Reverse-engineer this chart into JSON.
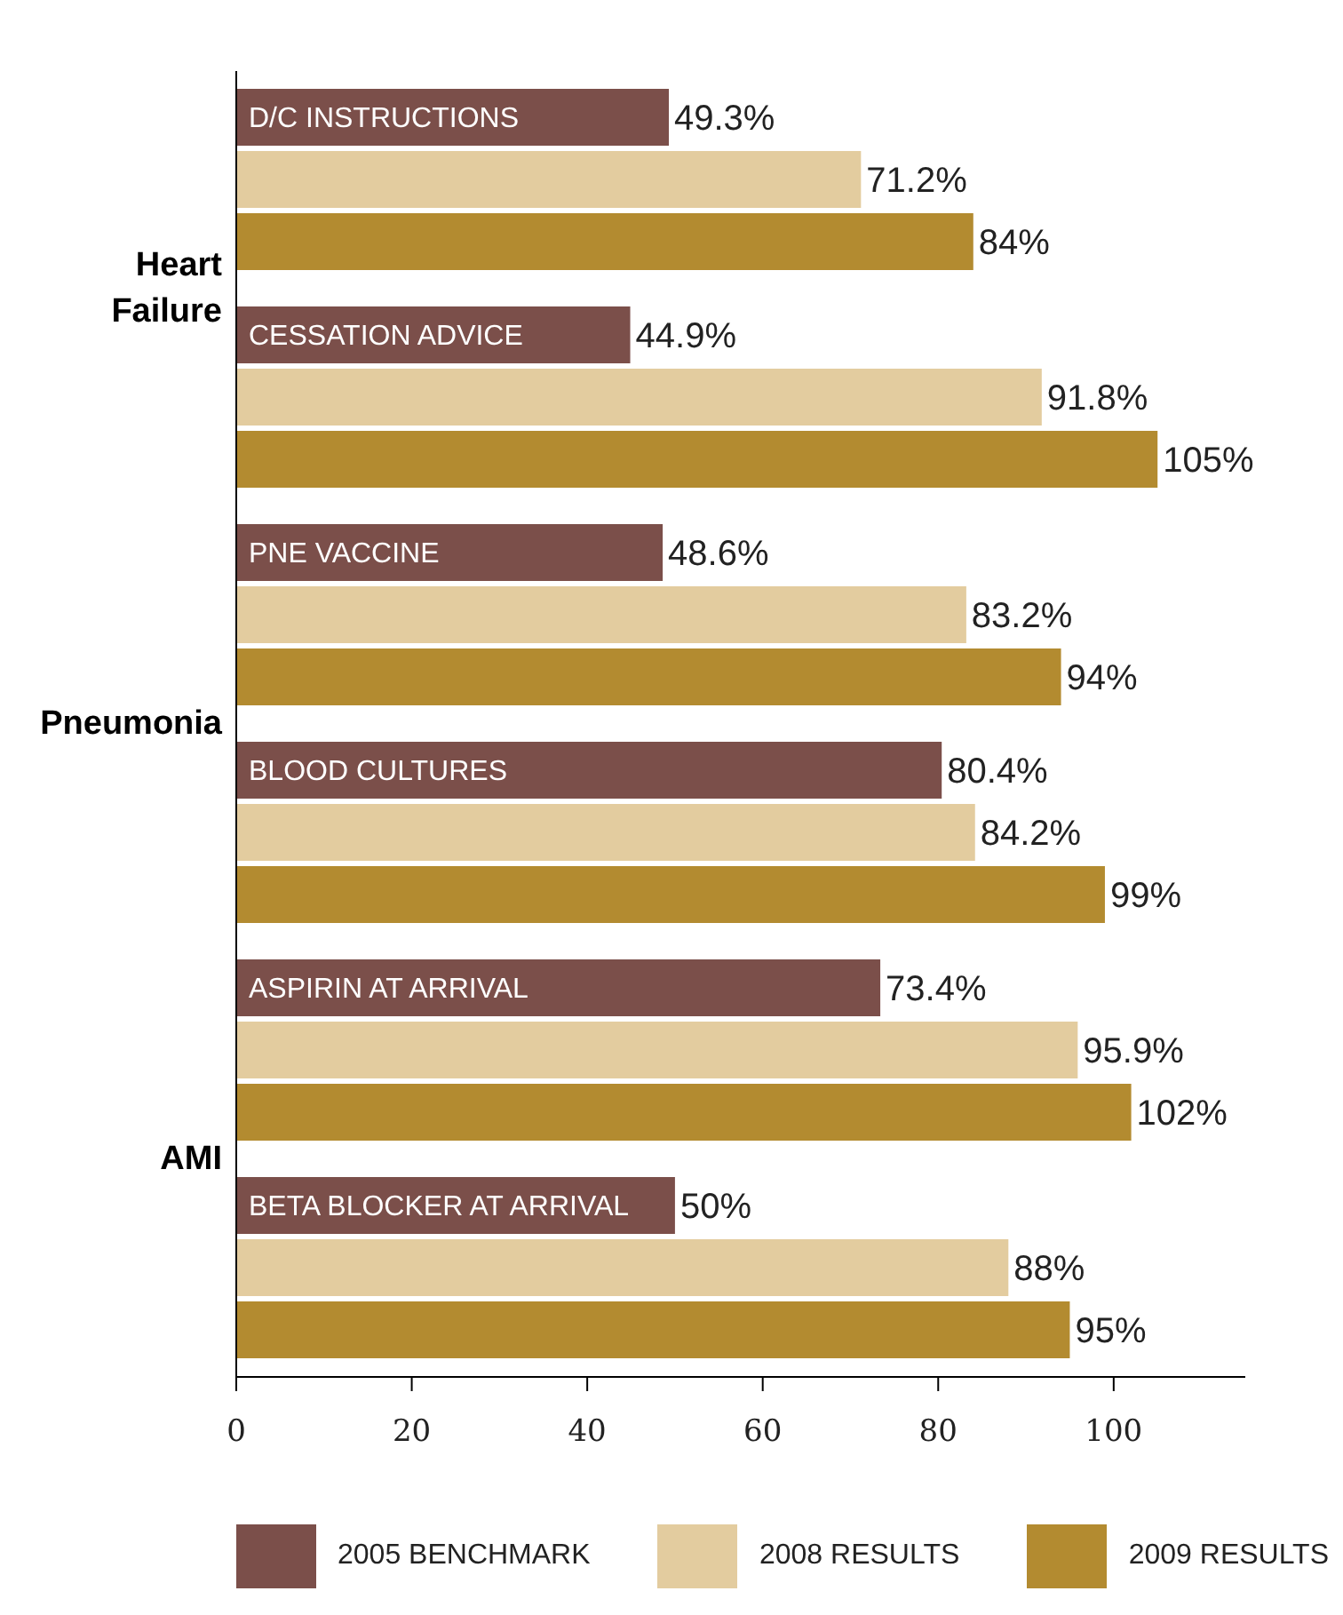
{
  "chart_data": {
    "type": "bar",
    "orientation": "horizontal",
    "categories": [
      "D/C INSTRUCTIONS",
      "CESSATION ADVICE",
      "PNE VACCINE",
      "BLOOD CULTURES",
      "ASPIRIN AT ARRIVAL",
      "BETA BLOCKER AT ARRIVAL"
    ],
    "series": [
      {
        "name": "2005 BENCHMARK",
        "color": "#7b4f4a",
        "values": [
          49.3,
          44.9,
          48.6,
          80.4,
          73.4,
          50
        ],
        "value_labels": [
          "49.3%",
          "44.9%",
          "48.6%",
          "80.4%",
          "73.4%",
          "50%"
        ]
      },
      {
        "name": "2008 RESULTS",
        "color": "#e3cc9f",
        "values": [
          71.2,
          91.8,
          83.2,
          84.2,
          95.9,
          88
        ],
        "value_labels": [
          "71.2%",
          "91.8%",
          "83.2%",
          "84.2%",
          "95.9%",
          "88%"
        ]
      },
      {
        "name": "2009 RESULTS",
        "color": "#b38b30",
        "values": [
          84,
          105,
          94,
          99,
          102,
          95
        ],
        "value_labels": [
          "84%",
          "105%",
          "94%",
          "99%",
          "102%",
          "95%"
        ]
      }
    ],
    "annotations": [
      "Heart Failure",
      "Pneumonia",
      "AMI"
    ],
    "xlim": [
      0,
      115
    ],
    "xticks": [
      0,
      20,
      40,
      60,
      80,
      100
    ],
    "legend": "bottom",
    "grid": false
  }
}
